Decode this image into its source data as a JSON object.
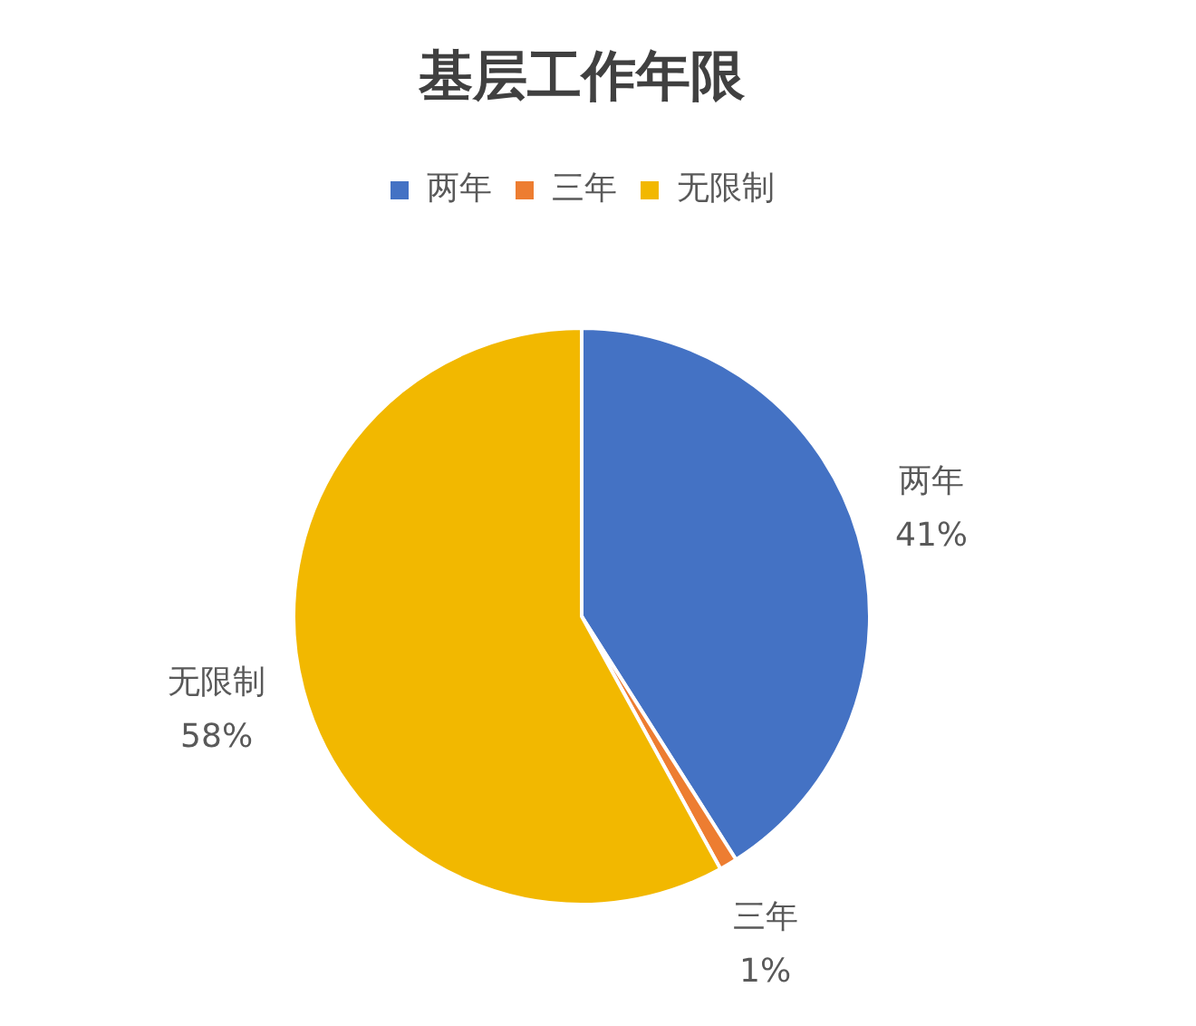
{
  "chart_data": {
    "type": "pie",
    "title": "基层工作年限",
    "categories": [
      "两年",
      "三年",
      "无限制"
    ],
    "values": [
      41,
      1,
      58
    ],
    "colors": [
      "#4472c4",
      "#ed7d31",
      "#f2b800"
    ],
    "value_labels": [
      "41%",
      "1%",
      "58%"
    ],
    "legend": "top"
  }
}
